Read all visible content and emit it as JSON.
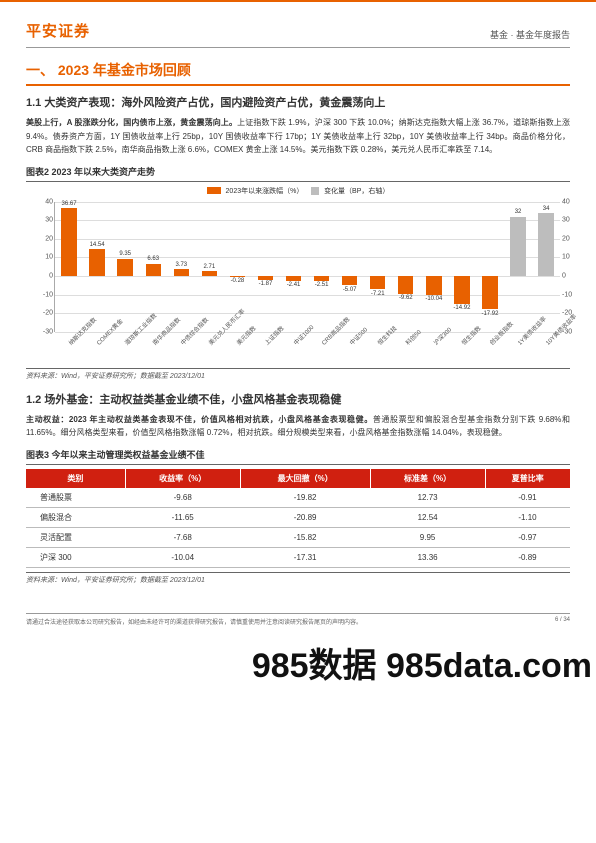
{
  "header": {
    "logo": "平安证券",
    "breadcrumb": "基金 · 基金年度报告"
  },
  "section1": {
    "heading": "一、  2023 年基金市场回顾",
    "sub1": {
      "title": "1.1 大类资产表现：海外风险资产占优，国内避险资产占优，黄金震荡向上",
      "bold": "美股上行，A 股涨跌分化，国内债市上涨，黄金震荡向上。",
      "body": "上证指数下跌 1.9%，沪深 300 下跌 10.0%；纳斯达克指数大幅上涨 36.7%，道琼斯指数上涨 9.4%。债券资产方面，1Y 国债收益率上行 25bp，10Y 国债收益率下行 17bp；1Y 美债收益率上行 32bp，10Y 美债收益率上行 34bp。商品价格分化，CRB 商品指数下跌 2.5%，南华商品指数上涨 6.6%，COMEX 黄金上涨 14.5%。美元指数下跌 0.28%，美元兑人民币汇率跌至 7.14。"
    }
  },
  "chart2": {
    "title": "图表2    2023 年以来大类资产走势",
    "legend_a": "2023年以来涨跌幅（%）",
    "legend_b": "变化量（BP，右轴）",
    "ylim": [
      -30,
      40
    ],
    "ylim_r": [
      -30,
      40
    ],
    "yticks": [
      -30,
      -20,
      -10,
      0,
      10,
      20,
      30,
      40
    ],
    "yticks_r": [
      -30,
      -20,
      -10,
      0,
      10,
      20,
      30,
      40
    ],
    "orange_color": "#e86100",
    "gray_color": "#bdbdbd",
    "bg": "#ffffff",
    "grid": "#dddddd",
    "bars": [
      {
        "label": "纳斯达克指数",
        "value": 36.67,
        "color": "orange"
      },
      {
        "label": "COMEX黄金",
        "value": 14.54,
        "color": "orange"
      },
      {
        "label": "道琼斯工业指数",
        "value": 9.35,
        "color": "orange"
      },
      {
        "label": "南华商品指数",
        "value": 6.63,
        "color": "orange"
      },
      {
        "label": "中债综合指数",
        "value": 3.73,
        "color": "orange"
      },
      {
        "label": "美元兑人民币汇率",
        "value": 2.71,
        "color": "orange"
      },
      {
        "label": "美元指数",
        "value": -0.28,
        "color": "orange"
      },
      {
        "label": "上证指数",
        "value": -1.87,
        "color": "orange"
      },
      {
        "label": "中证1000",
        "value": -2.41,
        "color": "orange"
      },
      {
        "label": "CRB商品指数",
        "value": -2.51,
        "color": "orange"
      },
      {
        "label": "中证500",
        "value": -5.07,
        "color": "orange"
      },
      {
        "label": "恒生科技",
        "value": -7.21,
        "color": "orange"
      },
      {
        "label": "科创50",
        "value": -9.62,
        "color": "orange"
      },
      {
        "label": "沪深300",
        "value": -10.04,
        "color": "orange"
      },
      {
        "label": "恒生指数",
        "value": -14.92,
        "color": "orange"
      },
      {
        "label": "创业板指数",
        "value": -17.92,
        "color": "orange"
      },
      {
        "label": "1Y美债收益率",
        "value": 32,
        "color": "gray"
      },
      {
        "label": "10Y美债收益率",
        "value": 34,
        "color": "gray"
      }
    ],
    "source": "资料来源：Wind，平安证券研究所；数据截至 2023/12/01"
  },
  "section12": {
    "title": "1.2 场外基金：主动权益类基金业绩不佳，小盘风格基金表现稳健",
    "bold": "主动权益：2023 年主动权益类基金表现不佳，价值风格相对抗跌，小盘风格基金表现稳健。",
    "body": "普通股票型和偏股混合型基金指数分别下跌 9.68%和 11.65%。细分风格类型来看，价值型风格指数涨幅 0.72%，相对抗跌。细分规模类型来看，小盘风格基金指数涨幅 14.04%，表现稳健。"
  },
  "table3": {
    "title": "图表3    今年以来主动管理类权益基金业绩不佳",
    "header_bg": "#d02010",
    "header_fg": "#ffffff",
    "columns": [
      "类别",
      "收益率（%）",
      "最大回撤（%）",
      "标准差（%）",
      "夏普比率"
    ],
    "rows": [
      [
        "普通股票",
        "-9.68",
        "-19.82",
        "12.73",
        "-0.91"
      ],
      [
        "偏股混合",
        "-11.65",
        "-20.89",
        "12.54",
        "-1.10"
      ],
      [
        "灵活配置",
        "-7.68",
        "-15.82",
        "9.95",
        "-0.97"
      ],
      [
        "沪深 300",
        "-10.04",
        "-17.31",
        "13.36",
        "-0.89"
      ]
    ],
    "source": "资料来源：Wind，平安证券研究所；数据截至 2023/12/01"
  },
  "footer": {
    "disclaimer": "请通过合法途径获取本公司研究报告，如经由未经许可的渠道获得研究报告，请慎重使用并注意阅读研究报告尾页的声明内容。",
    "page": "6 / 34"
  },
  "watermark": "985数据  985data.com"
}
